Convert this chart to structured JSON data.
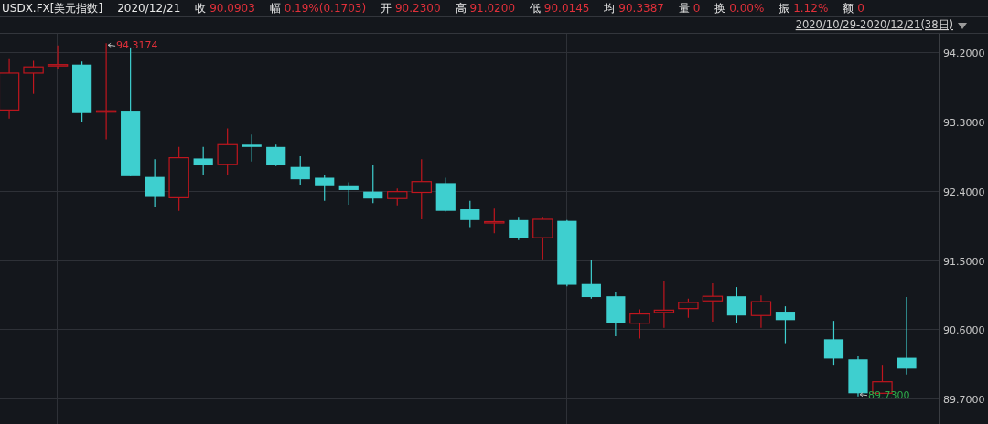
{
  "chart_data": {
    "type": "candlestick",
    "title": "USDX.FX[美元指数]",
    "subtitle": "2020/12/21",
    "annotations": [
      "收 90.0903",
      "幅 0.19%(0.1703)",
      "开 90.2300",
      "高 91.0200",
      "低 90.0145",
      "均 90.3387",
      "量 0",
      "换 0.00%",
      "振 1.12%",
      "额 0",
      "2020/10/29-2020/12/21(38日)",
      "94.3174",
      "89.7300"
    ],
    "categories": [
      null,
      null,
      null,
      null,
      null,
      null,
      null,
      null,
      null,
      null,
      null,
      null,
      null,
      null,
      null,
      null,
      null,
      null,
      null,
      null,
      null,
      null,
      null,
      null,
      null,
      null,
      null,
      null,
      null,
      null,
      null,
      null,
      null,
      null,
      null,
      null,
      null,
      null
    ],
    "ohlc": [
      [
        93.45,
        94.11,
        93.34,
        93.93
      ],
      [
        93.93,
        94.09,
        93.66,
        94.01
      ],
      [
        94.03,
        94.29,
        93.98,
        94.04
      ],
      [
        94.04,
        94.08,
        93.3,
        93.41
      ],
      [
        93.43,
        94.3174,
        93.07,
        93.44
      ],
      [
        93.43,
        94.26,
        92.59,
        92.59
      ],
      [
        92.58,
        92.81,
        92.19,
        92.32
      ],
      [
        92.31,
        92.97,
        92.14,
        92.83
      ],
      [
        92.82,
        92.97,
        92.61,
        92.73
      ],
      [
        92.74,
        93.21,
        92.61,
        93.0
      ],
      [
        93.0,
        93.13,
        92.78,
        92.97
      ],
      [
        92.97,
        93.0,
        92.72,
        92.73
      ],
      [
        92.71,
        92.85,
        92.47,
        92.55
      ],
      [
        92.57,
        92.61,
        92.27,
        92.46
      ],
      [
        92.46,
        92.51,
        92.22,
        92.41
      ],
      [
        92.39,
        92.73,
        92.24,
        92.3
      ],
      [
        92.3,
        92.43,
        92.21,
        92.39
      ],
      [
        92.38,
        92.81,
        92.03,
        92.52
      ],
      [
        92.5,
        92.57,
        92.13,
        92.14
      ],
      [
        92.16,
        92.27,
        91.93,
        92.02
      ],
      [
        91.99,
        92.17,
        91.85,
        92.0
      ],
      [
        92.02,
        92.05,
        91.76,
        91.79
      ],
      [
        91.79,
        92.05,
        91.51,
        92.03
      ],
      [
        92.01,
        92.02,
        91.16,
        91.18
      ],
      [
        91.19,
        91.5,
        91.0,
        91.02
      ],
      [
        91.03,
        91.09,
        90.51,
        90.68
      ],
      [
        90.68,
        90.86,
        90.48,
        90.8
      ],
      [
        90.82,
        91.23,
        90.62,
        90.85
      ],
      [
        90.87,
        91.0,
        90.75,
        90.95
      ],
      [
        90.97,
        91.2,
        90.7,
        91.03
      ],
      [
        91.03,
        91.15,
        90.68,
        90.78
      ],
      [
        90.78,
        91.04,
        90.62,
        90.96
      ],
      [
        90.83,
        90.9,
        90.42,
        90.72
      ],
      null,
      [
        90.47,
        90.71,
        90.14,
        90.22
      ],
      [
        90.21,
        90.25,
        89.73,
        89.77
      ],
      [
        89.77,
        90.14,
        89.77,
        89.92
      ],
      [
        90.23,
        91.02,
        90.0145,
        90.0903
      ]
    ],
    "colors": [
      "#c0161e",
      "#c0161e",
      "#c0161e",
      "#3ecfcf",
      "#c0161e",
      "#3ecfcf",
      "#3ecfcf",
      "#c0161e",
      "#3ecfcf",
      "#c0161e",
      "#3ecfcf",
      "#3ecfcf",
      "#3ecfcf",
      "#3ecfcf",
      "#3ecfcf",
      "#3ecfcf",
      "#c0161e",
      "#c0161e",
      "#3ecfcf",
      "#3ecfcf",
      "#c0161e",
      "#3ecfcf",
      "#c0161e",
      "#3ecfcf",
      "#3ecfcf",
      "#3ecfcf",
      "#c0161e",
      "#c0161e",
      "#c0161e",
      "#c0161e",
      "#3ecfcf",
      "#c0161e",
      "#3ecfcf",
      null,
      "#3ecfcf",
      "#3ecfcf",
      "#c0161e",
      "#3ecfcf"
    ],
    "ylim": [
      89.37,
      94.44
    ],
    "yticks": [
      {
        "value": 89.7,
        "label": "89.7000"
      },
      {
        "value": 90.6,
        "label": "90.6000"
      },
      {
        "value": 91.5,
        "label": "91.5000"
      },
      {
        "value": 92.4,
        "label": "92.4000"
      },
      {
        "value": 93.3,
        "label": "93.3000"
      },
      {
        "value": 94.2,
        "label": "94.2000"
      }
    ],
    "grid": true,
    "tick_labels": "y"
  }
}
